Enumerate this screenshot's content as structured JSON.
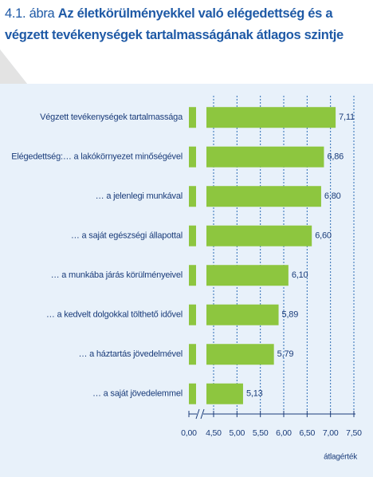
{
  "chart_data": {
    "type": "bar",
    "orientation": "horizontal",
    "figure_label": "4.1. ábra",
    "title": "Az életkörülményekkel való elégedettség és a végzett tevékenységek tartalmasságának átlagos szintje",
    "categories": [
      "Végzett tevékenységek tartalmassága",
      "Elégedettség:… a lakókörnyezet minőségével",
      "… a jelenlegi munkával",
      "… a saját egészségi állapottal",
      "… a munkába járás körülményeivel",
      "… a kedvelt dolgokkal tölthető idővel",
      "… a háztartás jövedelmével",
      "… a saját jövedelemmel"
    ],
    "values": [
      7.11,
      6.86,
      6.8,
      6.6,
      6.1,
      5.89,
      5.79,
      5.13
    ],
    "value_labels": [
      "7,11",
      "6,86",
      "6,80",
      "6,60",
      "6,10",
      "5,89",
      "5,79",
      "5,13"
    ],
    "color": "#8dc63f",
    "xlim": [
      0,
      7.5
    ],
    "axis_break": true,
    "xticks": [
      {
        "value": 0,
        "label": "0,00"
      },
      {
        "value": 4.5,
        "label": "4,50"
      },
      {
        "value": 5,
        "label": "5,00"
      },
      {
        "value": 5.5,
        "label": "5,50"
      },
      {
        "value": 6,
        "label": "6,00"
      },
      {
        "value": 6.5,
        "label": "6,50"
      },
      {
        "value": 7,
        "label": "7,00"
      },
      {
        "value": 7.5,
        "label": "7,50"
      }
    ],
    "xlabel": "átlagérték",
    "grid": true
  }
}
